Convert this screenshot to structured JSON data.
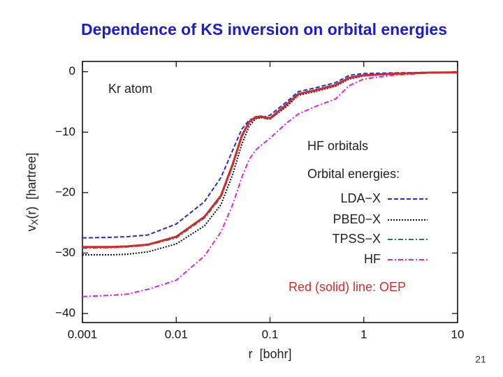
{
  "slide_title": "Dependence of KS inversion on orbital energies",
  "page_number": "21",
  "chart_data": {
    "type": "line",
    "xlabel": "r  [bohr]",
    "ylabel": {
      "main": "v",
      "sub": "X",
      "rest": "(r)  [hartree]"
    },
    "annotations": [
      "Kr atom",
      "HF orbitals",
      "Orbital energies:"
    ],
    "oep_note": "Red (solid) line: OEP",
    "xscale": "log",
    "xlim": [
      0.001,
      10
    ],
    "xticks": [
      0.001,
      0.01,
      0.1,
      1,
      10
    ],
    "ylim": [
      -41.5,
      1.7
    ],
    "yticks": [
      {
        "value": -40,
        "label": "−40"
      },
      {
        "value": -30,
        "label": "−30"
      },
      {
        "value": -20,
        "label": "−20"
      },
      {
        "value": -10,
        "label": "−10"
      },
      0
    ],
    "x": [
      0.001,
      0.002,
      0.003,
      0.005,
      0.01,
      0.02,
      0.03,
      0.04,
      0.05,
      0.06,
      0.07,
      0.08,
      0.1,
      0.15,
      0.2,
      0.3,
      0.5,
      0.7,
      1,
      2,
      5,
      10
    ],
    "series": [
      {
        "name": "LDA−X",
        "color": "#2a2ad0",
        "dash": "6,3",
        "width": 2,
        "values": [
          -27.5,
          -27.4,
          -27.3,
          -27,
          -25.2,
          -21.5,
          -17.5,
          -13,
          -9.5,
          -8,
          -7.6,
          -7.6,
          -7.2,
          -5,
          -3.3,
          -2.7,
          -1.8,
          -0.6,
          -0.3,
          -0.2,
          -0.1,
          -0.1
        ]
      },
      {
        "name": "PBE0−X",
        "color": "#111111",
        "dash": "2,2",
        "width": 2,
        "values": [
          -30.3,
          -30.3,
          -30.2,
          -29.8,
          -28.5,
          -25.5,
          -22,
          -17,
          -12,
          -9,
          -7.8,
          -7.6,
          -7.8,
          -5.8,
          -3.9,
          -3.3,
          -2.4,
          -1.2,
          -0.7,
          -0.4,
          -0.2,
          -0.1
        ]
      },
      {
        "name": "TPSS−X",
        "color": "#1a7a7a",
        "dash": "7,3,2,3",
        "width": 2,
        "values": [
          -29.2,
          -29.1,
          -29,
          -28.7,
          -27.5,
          -24.2,
          -20.8,
          -15.6,
          -10.8,
          -8.5,
          -7.7,
          -7.6,
          -7.9,
          -5.6,
          -3.6,
          -3.0,
          -2.1,
          -0.9,
          -0.5,
          -0.3,
          -0.15,
          -0.1
        ]
      },
      {
        "name": "HF",
        "color": "#e020e0",
        "dash": "7,3,2,3",
        "width": 2,
        "values": [
          -37.2,
          -37,
          -36.8,
          -36,
          -34.5,
          -30.5,
          -26.5,
          -22,
          -17.5,
          -14.5,
          -13,
          -12.2,
          -11,
          -8.5,
          -7,
          -5.8,
          -4.5,
          -2.3,
          -1.2,
          -0.6,
          -0.2,
          -0.1
        ]
      },
      {
        "color": "#d42a2a",
        "dash": "none",
        "width": 3,
        "values": [
          -29,
          -29,
          -28.9,
          -28.6,
          -27.3,
          -24,
          -20.5,
          -15.3,
          -10.6,
          -8.3,
          -7.5,
          -7.4,
          -7.7,
          -5.4,
          -3.7,
          -3.1,
          -2.2,
          -1.0,
          -0.6,
          -0.35,
          -0.15,
          -0.1
        ]
      }
    ]
  }
}
